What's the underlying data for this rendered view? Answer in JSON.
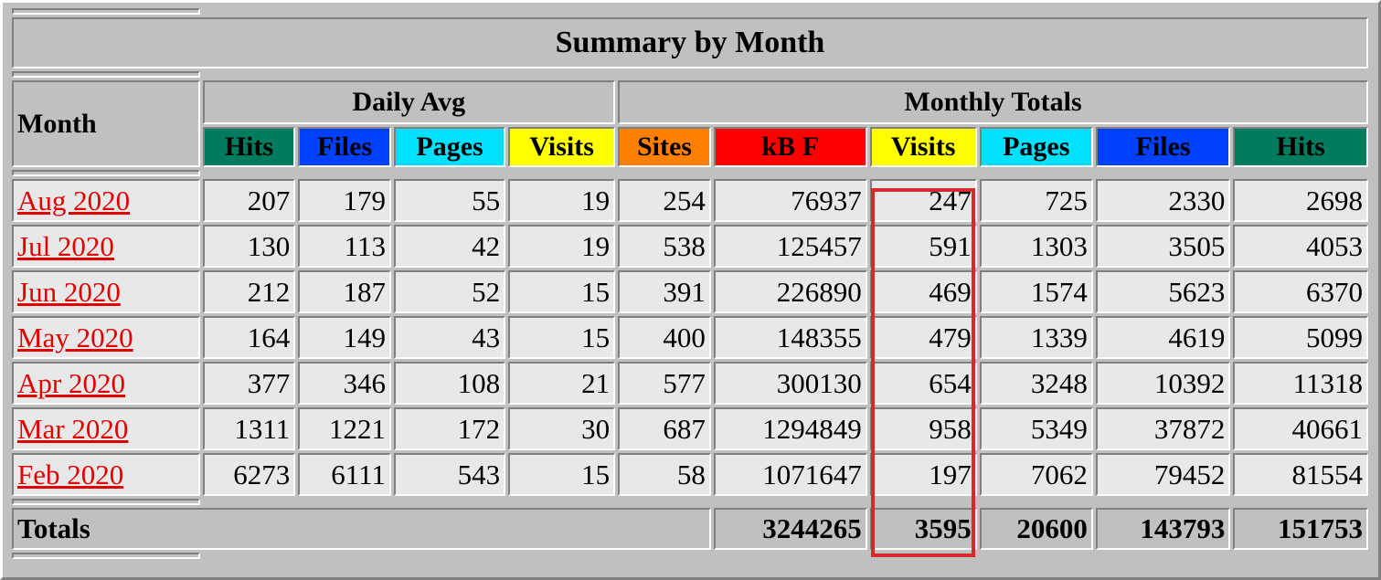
{
  "title": "Summary by Month",
  "month_header": "Month",
  "groups": {
    "daily": "Daily Avg",
    "monthly": "Monthly Totals"
  },
  "columns": [
    {
      "label": "Hits",
      "bg": "#007b5e",
      "fg": "#000000"
    },
    {
      "label": "Files",
      "bg": "#0040ff",
      "fg": "#000000"
    },
    {
      "label": "Pages",
      "bg": "#00e0ff",
      "fg": "#000000"
    },
    {
      "label": "Visits",
      "bg": "#ffff00",
      "fg": "#000000"
    },
    {
      "label": "Sites",
      "bg": "#ff8000",
      "fg": "#000000"
    },
    {
      "label": "kB F",
      "bg": "#ff0000",
      "fg": "#000000"
    },
    {
      "label": "Visits",
      "bg": "#ffff00",
      "fg": "#000000"
    },
    {
      "label": "Pages",
      "bg": "#00e0ff",
      "fg": "#000000"
    },
    {
      "label": "Files",
      "bg": "#0040ff",
      "fg": "#000000"
    },
    {
      "label": "Hits",
      "bg": "#007b5e",
      "fg": "#000000"
    }
  ],
  "rows": [
    {
      "month": "Aug 2020",
      "values": [
        "207",
        "179",
        "55",
        "19",
        "254",
        "76937",
        "247",
        "725",
        "2330",
        "2698"
      ]
    },
    {
      "month": "Jul 2020",
      "values": [
        "130",
        "113",
        "42",
        "19",
        "538",
        "125457",
        "591",
        "1303",
        "3505",
        "4053"
      ]
    },
    {
      "month": "Jun 2020",
      "values": [
        "212",
        "187",
        "52",
        "15",
        "391",
        "226890",
        "469",
        "1574",
        "5623",
        "6370"
      ]
    },
    {
      "month": "May 2020",
      "values": [
        "164",
        "149",
        "43",
        "15",
        "400",
        "148355",
        "479",
        "1339",
        "4619",
        "5099"
      ]
    },
    {
      "month": "Apr 2020",
      "values": [
        "377",
        "346",
        "108",
        "21",
        "577",
        "300130",
        "654",
        "3248",
        "10392",
        "11318"
      ]
    },
    {
      "month": "Mar 2020",
      "values": [
        "1311",
        "1221",
        "172",
        "30",
        "687",
        "1294849",
        "958",
        "5349",
        "37872",
        "40661"
      ]
    },
    {
      "month": "Feb 2020",
      "values": [
        "6273",
        "6111",
        "543",
        "15",
        "58",
        "1071647",
        "197",
        "7062",
        "79452",
        "81554"
      ]
    }
  ],
  "totals": {
    "label": "Totals",
    "kbf": "3244265",
    "visits": "3595",
    "pages": "20600",
    "files": "143793",
    "hits": "151753"
  },
  "highlight_color": "#d42a2a"
}
